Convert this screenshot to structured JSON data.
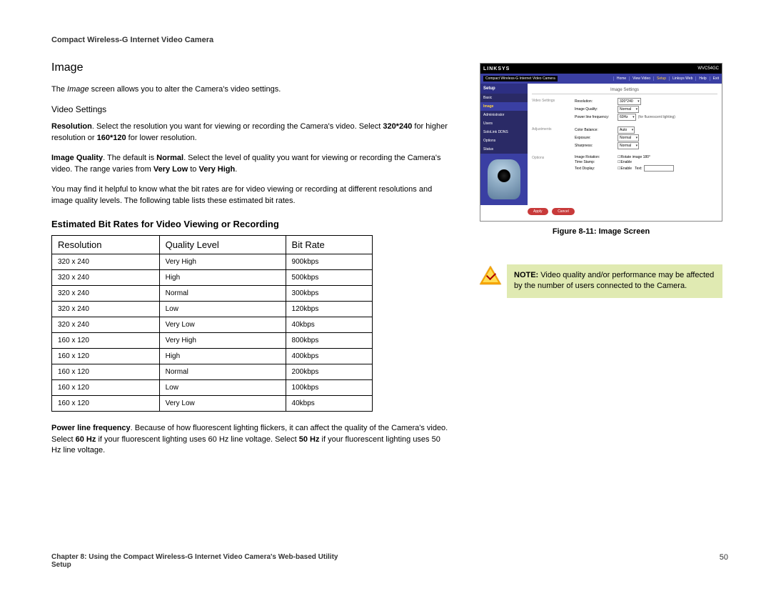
{
  "header": "Compact Wireless-G Internet Video Camera",
  "section": {
    "title": "Image",
    "intro_pre": "The ",
    "intro_em": "Image",
    "intro_post": " screen allows you to alter the Camera's video settings.",
    "sub_title": "Video Settings",
    "resolution_para": {
      "lead": "Resolution",
      "text1": ". Select the resolution you want for viewing or recording the Camera's video. Select ",
      "b1": "320*240",
      "text2": " for higher resolution or ",
      "b2": "160*120",
      "text3": " for lower resolution."
    },
    "quality_para": {
      "lead": "Image Quality",
      "text1": ". The default is ",
      "b1": "Normal",
      "text2": ". Select the level of quality you want for viewing or recording the Camera's video. The range varies from ",
      "b2": "Very Low",
      "text3": " to ",
      "b3": "Very High",
      "text4": "."
    },
    "intro2": "You may find it helpful to know what the bit rates are for video viewing or recording at different resolutions and image quality levels. The following table lists these estimated bit rates.",
    "table_title": "Estimated Bit Rates for Video Viewing or Recording",
    "power_para": {
      "lead": "Power line frequency",
      "text1": ". Because of how fluorescent lighting flickers, it can affect the quality of the Camera's video. Select ",
      "b1": "60 Hz",
      "text2": " if your fluorescent lighting uses 60 Hz line voltage. Select ",
      "b2": "50 Hz",
      "text3": " if your fluorescent lighting uses 50 Hz line voltage."
    }
  },
  "table": {
    "columns": [
      "Resolution",
      "Quality Level",
      "Bit Rate"
    ],
    "rows": [
      [
        "320 x 240",
        "Very High",
        "900kbps"
      ],
      [
        "320 x 240",
        "High",
        "500kbps"
      ],
      [
        "320 x 240",
        "Normal",
        "300kbps"
      ],
      [
        "320 x 240",
        "Low",
        "120kbps"
      ],
      [
        "320 x 240",
        "Very Low",
        "40kbps"
      ],
      [
        "160 x 120",
        "Very High",
        "800kbps"
      ],
      [
        "160 x 120",
        "High",
        "400kbps"
      ],
      [
        "160 x 120",
        "Normal",
        "200kbps"
      ],
      [
        "160 x 120",
        "Low",
        "100kbps"
      ],
      [
        "160 x 120",
        "Very Low",
        "40kbps"
      ]
    ]
  },
  "screenshot": {
    "brand": "LINKSYS",
    "model": "WVC54GC",
    "product": "Compact Wireless-G Internet Video Camera",
    "nav": [
      "Home",
      "View Video",
      "Setup",
      "Linksys Web",
      "Help",
      "Exit"
    ],
    "nav_active_idx": 2,
    "side_setup": "Setup",
    "side": [
      "Basic",
      "Image",
      "Administrator",
      "Users",
      "SoloLink DDNS",
      "Options",
      "Status"
    ],
    "side_sel_idx": 1,
    "panel_title": "Image Settings",
    "group1": "Video Settings",
    "group2": "Adjustments",
    "group3": "Options",
    "fields": {
      "resolution_l": "Resolution:",
      "resolution_v": "320*240",
      "quality_l": "Image Quality:",
      "quality_v": "Normal",
      "freq_l": "Power line frequency:",
      "freq_v": "60Hz",
      "freq_hint": "(for fluorescent lighting)",
      "cb_l": "Color Balance:",
      "cb_v": "Auto",
      "exp_l": "Exposure:",
      "exp_v": "Normal",
      "sharp_l": "Sharpness:",
      "sharp_v": "Normal",
      "rot_l": "Image Rotation:",
      "rot_v": "Rotate image 180°",
      "ts_l": "Time Stamp:",
      "ts_v": "Enable",
      "td_l": "Text Display:",
      "td_v": "Enable",
      "td_field": "Text:"
    },
    "btn_apply": "Apply",
    "btn_cancel": "Cancel"
  },
  "figure_caption": "Figure 8-11: Image Screen",
  "note": {
    "lead": "NOTE:",
    "text": " Video quality and/or performance may be affected by the number of users connected to the Camera."
  },
  "footer": {
    "chapter": "Chapter 8: Using the Compact Wireless-G Internet Video Camera's Web-based Utility",
    "sub": "Setup",
    "page": "50"
  },
  "colors": {
    "note_bg": "#e0eab2",
    "linksys_blue": "#3a3fa3",
    "linksys_dark": "#000000",
    "btn_red": "#c83a3a",
    "warn_outer": "#f5a300",
    "warn_inner": "#ffdd55"
  }
}
